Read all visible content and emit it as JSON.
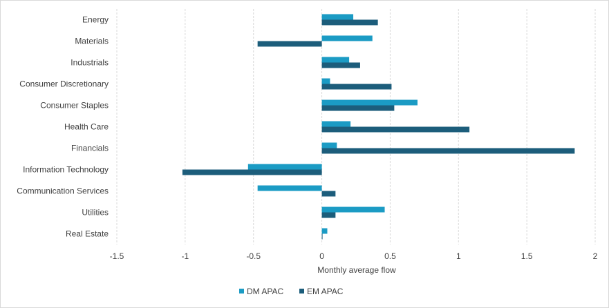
{
  "chart_data": {
    "type": "bar",
    "orientation": "horizontal",
    "categories": [
      "Energy",
      "Materials",
      "Industrials",
      "Consumer Discretionary",
      "Consumer Staples",
      "Health Care",
      "Financials",
      "Information Technology",
      "Communication Services",
      "Utilities",
      "Real Estate"
    ],
    "series": [
      {
        "name": "DM APAC",
        "color": "#1b9bc4",
        "values": [
          0.23,
          0.37,
          0.2,
          0.06,
          0.7,
          0.21,
          0.11,
          -0.54,
          -0.47,
          0.46,
          0.04
        ]
      },
      {
        "name": "EM APAC",
        "color": "#1c5d7b",
        "values": [
          0.41,
          -0.47,
          0.28,
          0.51,
          0.53,
          1.08,
          1.85,
          -1.02,
          0.1,
          0.1,
          0.005
        ]
      }
    ],
    "xlabel": "Monthly average flow",
    "xlim": [
      -1.5,
      2
    ],
    "xticks": [
      "-1.5",
      "-1",
      "-0.5",
      "0",
      "0.5",
      "1",
      "1.5",
      "2"
    ],
    "grid": "vertical-dashed",
    "legend": "bottom"
  }
}
